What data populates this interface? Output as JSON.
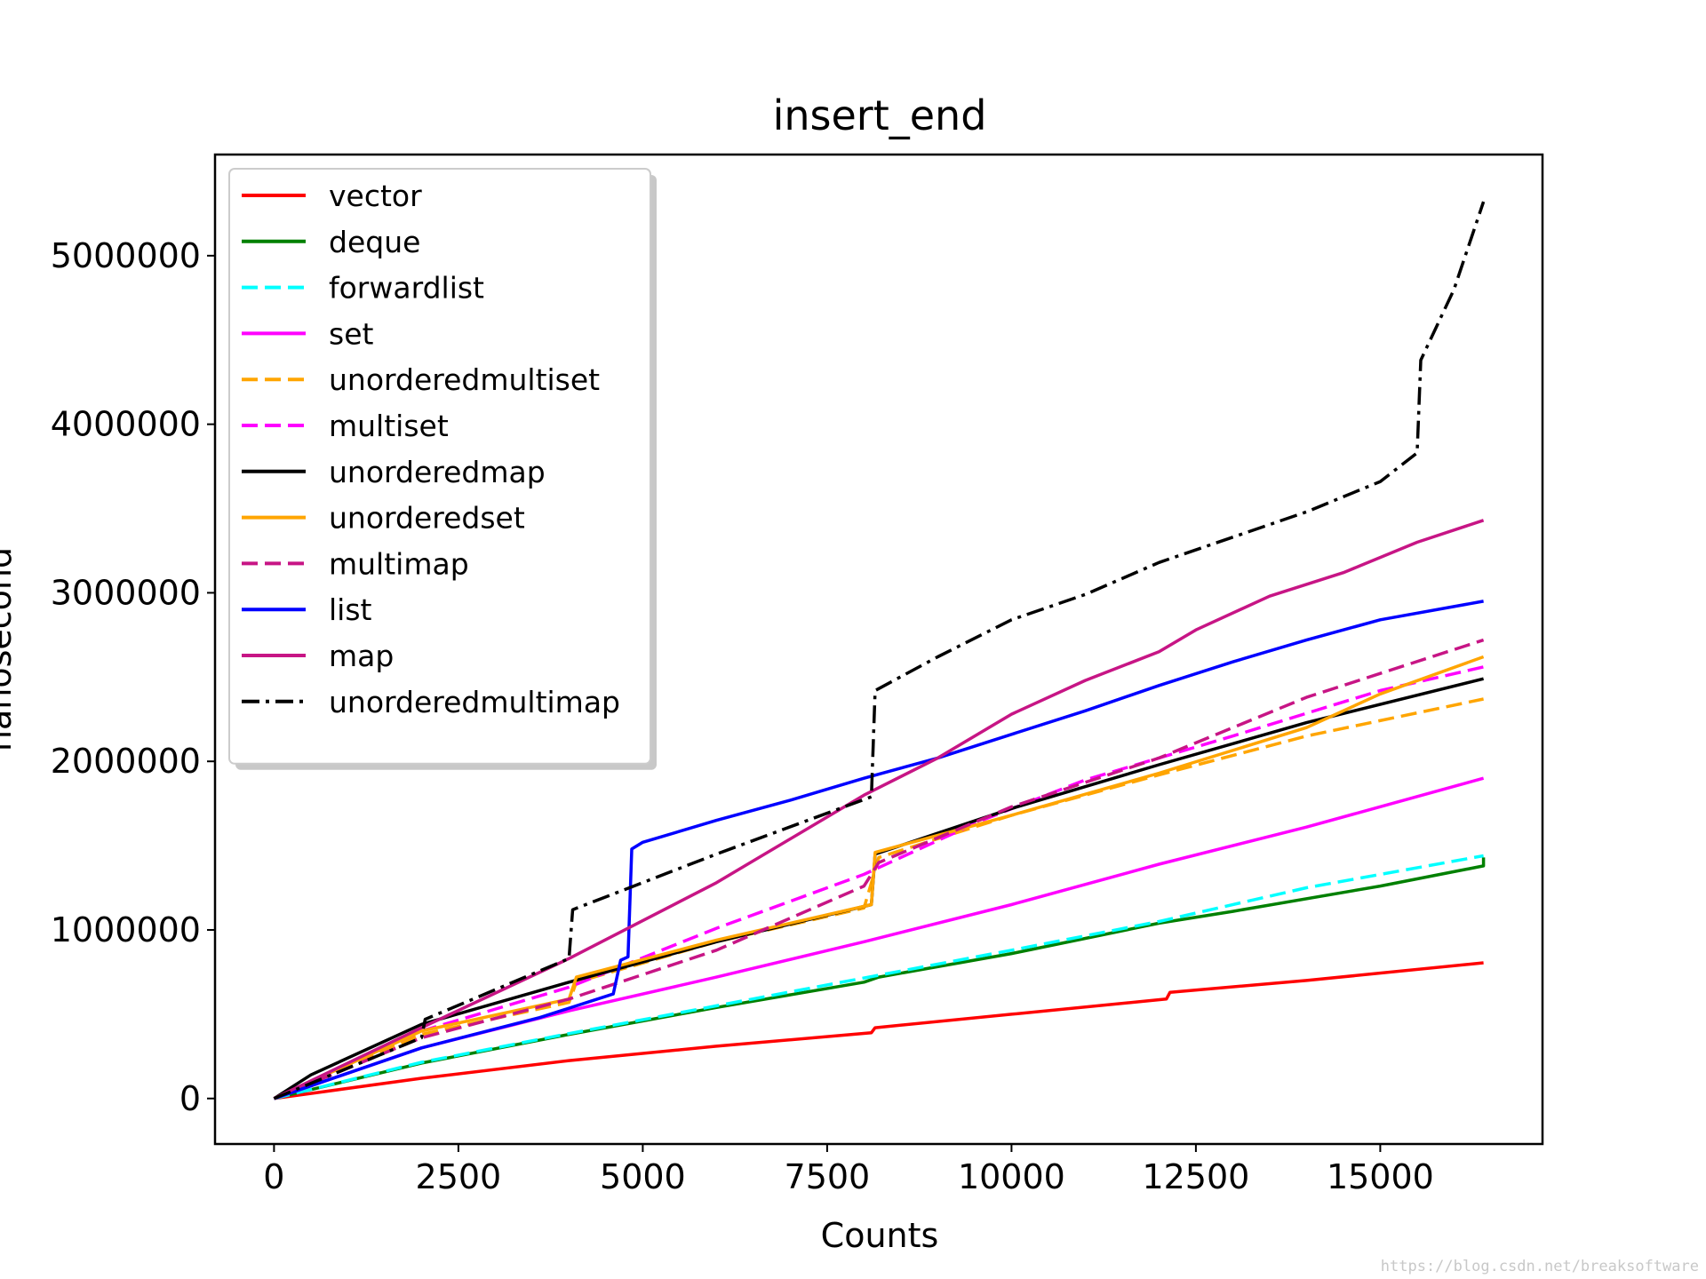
{
  "chart_data": {
    "type": "line",
    "title": "insert_end",
    "xlabel": "Counts",
    "ylabel": "nanosecond",
    "xlim": [
      -800,
      17200
    ],
    "ylim": [
      -270000,
      5600000
    ],
    "xticks": [
      0,
      2500,
      5000,
      7500,
      10000,
      12500,
      15000
    ],
    "xtick_labels": [
      "0",
      "2500",
      "5000",
      "7500",
      "10000",
      "12500",
      "15000"
    ],
    "yticks": [
      0,
      1000000,
      2000000,
      3000000,
      4000000,
      5000000
    ],
    "ytick_labels": [
      "0",
      "1000000",
      "2000000",
      "3000000",
      "4000000",
      "5000000"
    ],
    "grid": false,
    "legend": "top-left",
    "series": [
      {
        "name": "vector",
        "color": "#ff0000",
        "dash": "solid",
        "x": [
          0,
          2000,
          4000,
          6000,
          8100,
          8150,
          10000,
          12100,
          12150,
          14000,
          16400
        ],
        "y": [
          0,
          120000,
          225000,
          310000,
          390000,
          420000,
          500000,
          590000,
          630000,
          700000,
          805000
        ]
      },
      {
        "name": "deque",
        "color": "#008000",
        "dash": "solid",
        "x": [
          0,
          2000,
          4000,
          6000,
          8000,
          8200,
          10000,
          12000,
          13000,
          15000,
          16400,
          16400
        ],
        "y": [
          0,
          210000,
          380000,
          540000,
          690000,
          720000,
          860000,
          1040000,
          1110000,
          1260000,
          1380000,
          1430000
        ]
      },
      {
        "name": "forwardlist",
        "color": "#00ffff",
        "dash": "dashed",
        "x": [
          0,
          2000,
          4000,
          6000,
          8000,
          10000,
          12000,
          14000,
          16400
        ],
        "y": [
          0,
          215000,
          385000,
          550000,
          715000,
          880000,
          1050000,
          1250000,
          1440000
        ]
      },
      {
        "name": "set",
        "color": "#ff00ff",
        "dash": "solid",
        "x": [
          0,
          2000,
          4000,
          6000,
          8000,
          10000,
          12000,
          14000,
          16400
        ],
        "y": [
          0,
          300000,
          520000,
          720000,
          930000,
          1150000,
          1390000,
          1610000,
          1900000
        ]
      },
      {
        "name": "unorderedmultiset",
        "color": "#ffa500",
        "dash": "dashed",
        "x": [
          0,
          2000,
          4000,
          4100,
          6000,
          8000,
          8200,
          10000,
          12000,
          14000,
          16400
        ],
        "y": [
          0,
          380000,
          570000,
          690000,
          930000,
          1130000,
          1430000,
          1680000,
          1920000,
          2150000,
          2370000
        ]
      },
      {
        "name": "multiset",
        "color": "#ff00ff",
        "dash": "dashed",
        "x": [
          0,
          2000,
          4000,
          6000,
          8000,
          9600,
          11000,
          13000,
          15000,
          16400
        ],
        "y": [
          0,
          400000,
          660000,
          1010000,
          1330000,
          1650000,
          1890000,
          2150000,
          2420000,
          2560000
        ]
      },
      {
        "name": "unorderedmap",
        "color": "#000000",
        "dash": "solid",
        "x": [
          0,
          500,
          2000,
          4000,
          6000,
          8100,
          8150,
          10000,
          12000,
          14000,
          16400
        ],
        "y": [
          0,
          140000,
          440000,
          690000,
          930000,
          1150000,
          1450000,
          1720000,
          1980000,
          2230000,
          2490000
        ]
      },
      {
        "name": "unorderedset",
        "color": "#ffa500",
        "dash": "solid",
        "x": [
          0,
          2000,
          4000,
          4100,
          6000,
          8100,
          8150,
          10000,
          12000,
          14000,
          15000,
          16400
        ],
        "y": [
          0,
          400000,
          590000,
          720000,
          940000,
          1150000,
          1460000,
          1680000,
          1930000,
          2200000,
          2400000,
          2620000
        ]
      },
      {
        "name": "multimap",
        "color": "#c71585",
        "dash": "dashed",
        "x": [
          0,
          2000,
          4000,
          6000,
          8000,
          8200,
          10000,
          12000,
          14000,
          16400
        ],
        "y": [
          0,
          360000,
          590000,
          880000,
          1260000,
          1400000,
          1730000,
          2020000,
          2380000,
          2720000
        ]
      },
      {
        "name": "list",
        "color": "#0000ff",
        "dash": "solid",
        "x": [
          0,
          2000,
          3600,
          4600,
          4700,
          4800,
          4850,
          5000,
          6000,
          7000,
          8000,
          9000,
          10000,
          11000,
          12000,
          13000,
          14000,
          15000,
          16400
        ],
        "y": [
          0,
          300000,
          480000,
          620000,
          820000,
          840000,
          1480000,
          1520000,
          1650000,
          1770000,
          1900000,
          2020000,
          2160000,
          2300000,
          2450000,
          2590000,
          2720000,
          2840000,
          2950000
        ]
      },
      {
        "name": "map",
        "color": "#c71585",
        "dash": "solid",
        "x": [
          0,
          2000,
          4000,
          6000,
          8000,
          9000,
          10000,
          11000,
          12000,
          12500,
          13500,
          14500,
          15500,
          16400
        ],
        "y": [
          0,
          420000,
          830000,
          1280000,
          1800000,
          2020000,
          2280000,
          2480000,
          2650000,
          2780000,
          2980000,
          3120000,
          3300000,
          3430000
        ]
      },
      {
        "name": "unorderedmultimap",
        "color": "#000000",
        "dash": "dashdot",
        "x": [
          0,
          2000,
          2050,
          4000,
          4050,
          6000,
          8100,
          8150,
          9000,
          10000,
          11000,
          12000,
          13000,
          14000,
          15000,
          15500,
          15550,
          16000,
          16400
        ],
        "y": [
          0,
          360000,
          470000,
          830000,
          1120000,
          1450000,
          1790000,
          2420000,
          2620000,
          2840000,
          2990000,
          3180000,
          3330000,
          3480000,
          3660000,
          3830000,
          4380000,
          4800000,
          5320000
        ]
      }
    ]
  },
  "watermark": "https://blog.csdn.net/breaksoftware"
}
